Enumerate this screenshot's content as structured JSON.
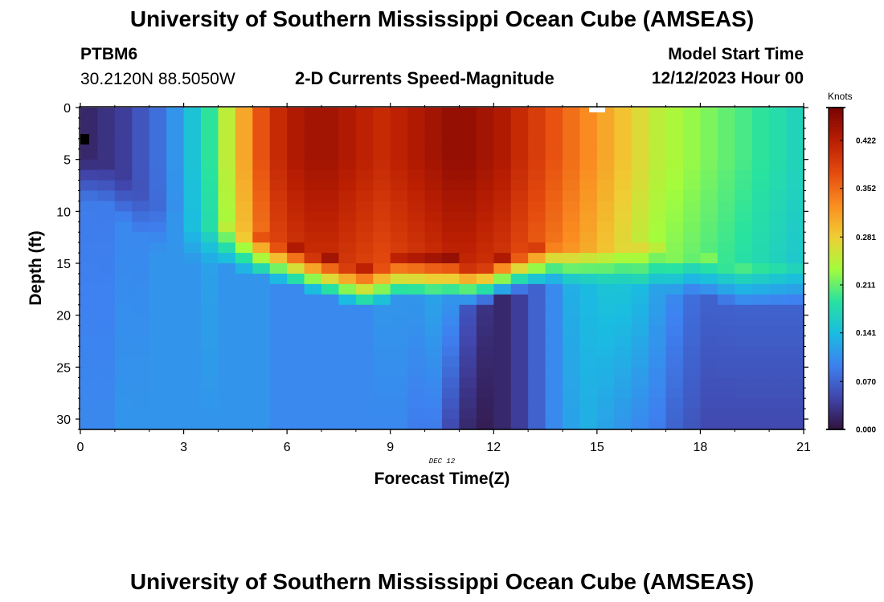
{
  "header": {
    "title": "University of Southern Mississippi Ocean Cube (AMSEAS)",
    "station": "PTBM6",
    "coords": "30.2120N  88.5050W",
    "subtitle": "2-D Currents Speed-Magnitude",
    "model_label": "Model Start Time",
    "model_time": "12/12/2023 Hour 00"
  },
  "footer": {
    "title": "University of Southern Mississippi Ocean Cube (AMSEAS)"
  },
  "chart_data": {
    "type": "heatmap",
    "title": "2-D Currents Speed-Magnitude",
    "xlabel": "Forecast Time(Z)",
    "ylabel": "Depth (ft)",
    "x_ticks": [
      "0",
      "3",
      "6",
      "9",
      "12",
      "15",
      "18",
      "21"
    ],
    "x_tick_values": [
      0,
      3,
      6,
      9,
      12,
      15,
      18,
      21
    ],
    "y_ticks": [
      "0",
      "5",
      "10",
      "15",
      "20",
      "25",
      "30"
    ],
    "y_tick_values": [
      0,
      5,
      10,
      15,
      20,
      25,
      30
    ],
    "xlim": [
      0,
      21
    ],
    "ylim": [
      0,
      31
    ],
    "date_label": "DEC 12",
    "colorbar": {
      "title": "Knots",
      "ticks": [
        "0.000",
        "0.070",
        "0.141",
        "0.211",
        "0.281",
        "0.352",
        "0.422"
      ],
      "tick_values": [
        0.0,
        0.07,
        0.141,
        0.211,
        0.281,
        0.352,
        0.422
      ],
      "range": [
        0,
        0.47
      ]
    },
    "upper_layer_speed_by_hour": [
      0.02,
      0.03,
      0.04,
      0.06,
      0.08,
      0.11,
      0.15,
      0.19,
      0.25,
      0.31,
      0.37,
      0.41,
      0.43,
      0.44,
      0.44,
      0.43,
      0.42,
      0.41,
      0.42,
      0.43,
      0.44,
      0.45,
      0.45,
      0.44,
      0.43,
      0.41,
      0.39,
      0.37,
      0.35,
      0.33,
      0.31,
      0.29,
      0.27,
      0.25,
      0.24,
      0.23,
      0.22,
      0.21,
      0.2,
      0.19,
      0.18,
      0.17
    ],
    "lower_layer_speed_by_hour": [
      0.09,
      0.09,
      0.1,
      0.1,
      0.11,
      0.11,
      0.11,
      0.12,
      0.11,
      0.11,
      0.11,
      0.1,
      0.1,
      0.1,
      0.1,
      0.1,
      0.1,
      0.11,
      0.11,
      0.11,
      0.12,
      0.11,
      0.06,
      0.03,
      0.02,
      0.04,
      0.07,
      0.1,
      0.13,
      0.14,
      0.15,
      0.15,
      0.14,
      0.12,
      0.1,
      0.08,
      0.07,
      0.07,
      0.07,
      0.07,
      0.07,
      0.07
    ],
    "interface_depth_ft_by_hour": [
      7,
      7.5,
      9,
      10.5,
      12,
      12.5,
      13,
      13,
      13.5,
      14,
      14.5,
      15,
      15.5,
      16,
      16.5,
      17,
      17.5,
      17,
      16.5,
      16.5,
      16.5,
      16.5,
      17,
      17,
      16.5,
      16,
      15.5,
      15,
      15,
      15,
      15,
      15,
      15.5,
      15.5,
      16,
      16,
      16.5,
      17,
      17.5,
      17.5,
      17.5,
      17.5
    ],
    "near_bottom_speed_by_hour": [
      0.1,
      0.1,
      0.11,
      0.11,
      0.11,
      0.11,
      0.11,
      0.11,
      0.11,
      0.11,
      0.11,
      0.1,
      0.1,
      0.1,
      0.1,
      0.1,
      0.1,
      0.1,
      0.1,
      0.09,
      0.09,
      0.05,
      0.02,
      0.01,
      0.02,
      0.04,
      0.07,
      0.1,
      0.12,
      0.13,
      0.12,
      0.11,
      0.1,
      0.09,
      0.07,
      0.06,
      0.05,
      0.05,
      0.05,
      0.05,
      0.05,
      0.05
    ]
  }
}
